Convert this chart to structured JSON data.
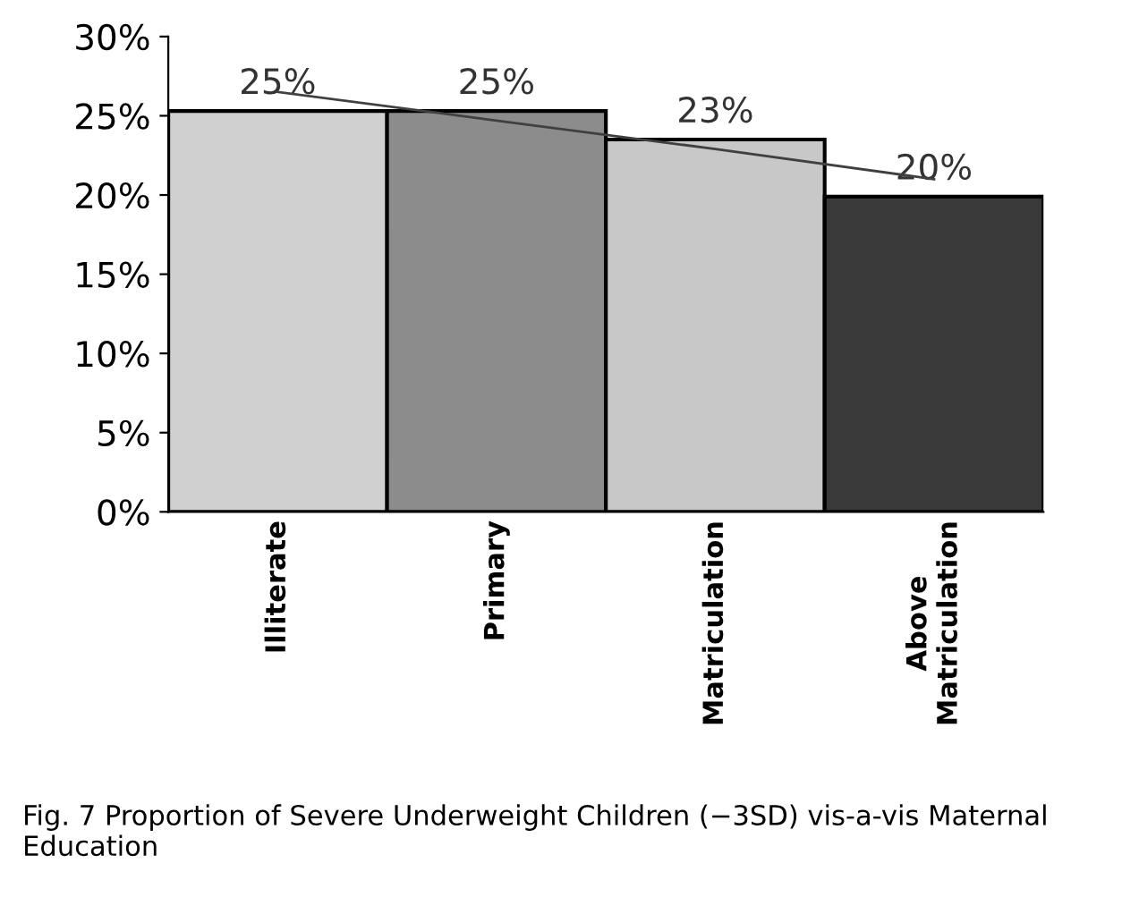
{
  "chart_data": {
    "type": "bar",
    "categories": [
      "Illiterate",
      "Primary",
      "Matriculation",
      "Above\nMatriculation"
    ],
    "series": [
      {
        "colors": [
          "#d0d0d0",
          "#8c8c8c",
          "#c8c8c8",
          "#3a3a3a"
        ],
        "values": [
          25.3,
          25.3,
          23.5,
          19.9
        ],
        "value_labels": [
          "25%",
          "25%",
          "23%",
          "20%"
        ]
      },
      {
        "type": "line",
        "color": "#404040",
        "values": [
          26.5,
          24.7,
          22.9,
          21.0
        ]
      }
    ],
    "ylim": [
      0,
      30
    ],
    "yticks": [
      {
        "value": 0,
        "label": "0%"
      },
      {
        "value": 5,
        "label": "5%"
      },
      {
        "value": 10,
        "label": "10%"
      },
      {
        "value": 15,
        "label": "15%"
      },
      {
        "value": 20,
        "label": "20%"
      },
      {
        "value": 25,
        "label": "25%"
      },
      {
        "value": 30,
        "label": "30%"
      }
    ],
    "grid": false,
    "annotations": [
      "Fig. 7 Proportion of Severe Underweight Children (−3SD) vis-a-vis Maternal Education"
    ]
  }
}
